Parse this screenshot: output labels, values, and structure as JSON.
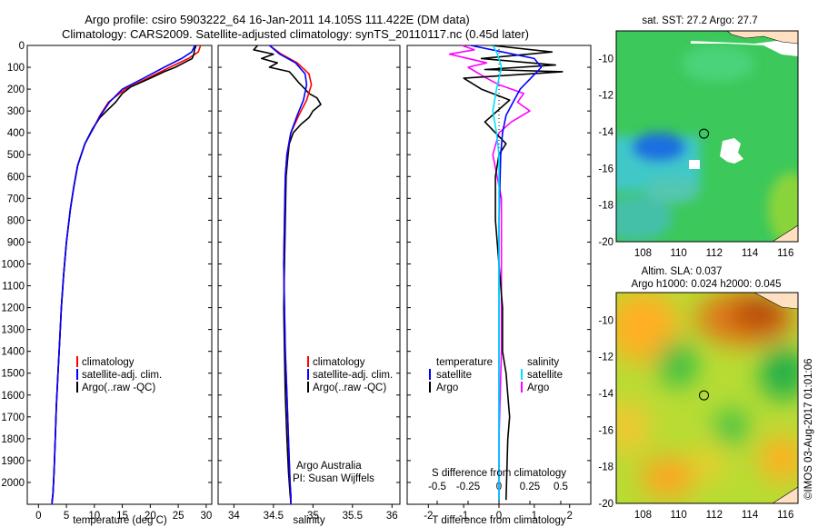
{
  "title": {
    "line1": "Argo profile: csiro 5903222_64 16-Jan-2011 14.105S 111.422E (DM data)",
    "line2": "Climatology: CARS2009. Satellite-adjusted climatology: synTS_20110117.nc (0.45d later)"
  },
  "colors": {
    "climatology": "#ff0000",
    "satellite": "#0000ff",
    "argo": "#000000",
    "argo_salinity": "#ff00ff",
    "satellite_salinity": "#00e0ff"
  },
  "chart_data": [
    {
      "type": "line",
      "id": "temperature",
      "xlabel": "temperature (deg C)",
      "xlim": [
        -2,
        31
      ],
      "ylim": [
        0,
        2100
      ],
      "xticks": [
        0,
        5,
        10,
        15,
        20,
        25,
        30
      ],
      "yticks": [
        0,
        100,
        200,
        300,
        400,
        500,
        600,
        700,
        800,
        900,
        1000,
        1100,
        1200,
        1300,
        1400,
        1500,
        1600,
        1700,
        1800,
        1900,
        2000
      ],
      "legend": [
        "climatology",
        "satellite-adj. clim.",
        "Argo(..raw -QC)"
      ],
      "series": [
        {
          "name": "climatology",
          "x": [
            29,
            28.6,
            26.8,
            23.5,
            19.5,
            15.5,
            12.5,
            11,
            9.8,
            8.3,
            7,
            6.3,
            5.7,
            5,
            4.5,
            4.1,
            3.8,
            3.5,
            3.2,
            3,
            2.8,
            2.6,
            2.4
          ],
          "y": [
            0,
            30,
            60,
            100,
            150,
            200,
            260,
            320,
            380,
            450,
            550,
            650,
            750,
            900,
            1050,
            1200,
            1350,
            1500,
            1650,
            1800,
            1950,
            2050,
            2100
          ]
        },
        {
          "name": "satellite-adj. clim.",
          "x": [
            28,
            27.4,
            25.6,
            22.5,
            18.8,
            15,
            12.7,
            11.1,
            9.8,
            8.3,
            7,
            6.3,
            5.7,
            5,
            4.5,
            4.1,
            3.8,
            3.5,
            3.2,
            3,
            2.8,
            2.6,
            2.4
          ],
          "y": [
            0,
            30,
            60,
            100,
            150,
            200,
            260,
            320,
            380,
            450,
            550,
            650,
            750,
            900,
            1050,
            1200,
            1350,
            1500,
            1650,
            1800,
            1950,
            2050,
            2100
          ]
        },
        {
          "name": "Argo(..raw -QC)",
          "x": [
            28.2,
            27.9,
            27.8,
            27.5,
            26,
            24.5,
            22.5,
            20,
            16.5,
            15,
            13.8,
            12.2,
            11,
            9.7,
            8.3,
            7,
            6.3,
            5.7,
            5,
            4.5,
            4.1,
            3.8,
            3.5,
            3.2,
            3,
            2.8,
            2.6,
            2.4
          ],
          "y": [
            0,
            20,
            40,
            60,
            80,
            100,
            120,
            150,
            190,
            220,
            260,
            300,
            330,
            380,
            450,
            550,
            650,
            750,
            900,
            1050,
            1200,
            1350,
            1500,
            1650,
            1800,
            1950,
            2050,
            2090
          ]
        }
      ]
    },
    {
      "type": "line",
      "id": "salinity",
      "xlabel": "salinity",
      "xlim": [
        33.8,
        36.1
      ],
      "ylim": [
        0,
        2100
      ],
      "xticks": [
        34,
        34.5,
        35,
        35.5,
        36
      ],
      "legend": [
        "climatology",
        "satellite-adj. clim.",
        "Argo(..raw -QC)"
      ],
      "annotation": [
        "Argo Australia",
        "PI: Susan Wijffels"
      ],
      "series": [
        {
          "name": "climatology",
          "x": [
            34.45,
            34.6,
            34.8,
            34.95,
            34.98,
            34.92,
            34.82,
            34.72,
            34.67,
            34.65,
            34.64,
            34.63,
            34.64,
            34.65,
            34.67,
            34.69,
            34.71,
            34.72,
            34.72
          ],
          "y": [
            0,
            40,
            80,
            130,
            180,
            250,
            320,
            400,
            500,
            600,
            800,
            1000,
            1200,
            1400,
            1600,
            1800,
            2000,
            2060,
            2100
          ]
        },
        {
          "name": "satellite-adj. clim.",
          "x": [
            34.45,
            34.58,
            34.78,
            34.9,
            34.92,
            34.88,
            34.8,
            34.72,
            34.67,
            34.65,
            34.64,
            34.63,
            34.64,
            34.65,
            34.67,
            34.69,
            34.71,
            34.72,
            34.72
          ],
          "y": [
            0,
            40,
            80,
            130,
            180,
            250,
            320,
            400,
            500,
            600,
            800,
            1000,
            1200,
            1400,
            1600,
            1800,
            2000,
            2060,
            2100
          ]
        },
        {
          "name": "Argo(..raw -QC)",
          "x": [
            34.3,
            34.25,
            34.5,
            34.35,
            34.55,
            34.45,
            34.7,
            34.75,
            34.82,
            34.9,
            34.95,
            35.05,
            35.1,
            35.0,
            34.95,
            34.85,
            34.75,
            34.7,
            34.68,
            34.66,
            34.65,
            34.64,
            34.63,
            34.64,
            34.65,
            34.67,
            34.69,
            34.71,
            34.72
          ],
          "y": [
            0,
            20,
            40,
            60,
            80,
            100,
            120,
            140,
            170,
            200,
            220,
            240,
            270,
            300,
            330,
            360,
            400,
            450,
            520,
            600,
            800,
            1000,
            1200,
            1400,
            1600,
            1800,
            1950,
            2050,
            2090
          ]
        }
      ]
    },
    {
      "type": "line",
      "id": "difference",
      "xlabel": "T difference from climatology",
      "xlabel2": "S difference from climatology",
      "xlim": [
        -2.6,
        2.6
      ],
      "ylim": [
        0,
        2100
      ],
      "xticks": [
        -2,
        -1,
        0,
        1,
        2
      ],
      "xticks2": [
        -0.5,
        -0.25,
        0,
        0.25,
        0.5
      ],
      "xticklabels2": [
        "-0.5",
        "-0.25",
        "0",
        "0.25",
        "0.5"
      ],
      "legend_temperature": [
        "temperature",
        "satellite",
        "Argo"
      ],
      "legend_salinity": [
        "salinity",
        "satellite",
        "Argo"
      ],
      "series": [
        {
          "name": "T satellite",
          "x": [
            -0.8,
            0.1,
            1.0,
            1.2,
            0.9,
            0.6,
            0.4,
            0.2,
            0.1,
            0.05,
            0,
            0,
            0,
            0
          ],
          "y": [
            0,
            30,
            60,
            100,
            150,
            200,
            260,
            320,
            400,
            500,
            800,
            1200,
            1600,
            2080
          ]
        },
        {
          "name": "T Argo",
          "x": [
            -0.2,
            1.5,
            -0.5,
            1.6,
            -0.4,
            1.8,
            -1.0,
            -0.5,
            0.3,
            -0.4,
            0.2,
            0.0,
            -0.1,
            -0.1,
            0.0,
            0.1,
            0.1,
            0.2,
            0.25,
            0.3,
            0.25,
            0.2
          ],
          "y": [
            0,
            30,
            60,
            90,
            110,
            120,
            150,
            200,
            250,
            350,
            450,
            500,
            600,
            800,
            1000,
            1200,
            1400,
            1500,
            1600,
            1700,
            1800,
            2080
          ]
        },
        {
          "name": "S satellite",
          "x": [
            -0.05,
            -0.02,
            0.0,
            0.02,
            -0.02,
            -0.05,
            -0.02,
            0,
            0,
            0,
            0
          ],
          "y": [
            0,
            30,
            60,
            100,
            200,
            300,
            400,
            500,
            800,
            1400,
            2080
          ]
        },
        {
          "name": "S Argo",
          "x": [
            -0.3,
            -0.2,
            -0.4,
            -0.1,
            -0.25,
            -0.1,
            0.0,
            0.2,
            0.15,
            0.25,
            0.1,
            0.0,
            -0.05,
            0.02,
            0.02,
            0.02,
            0,
            0
          ],
          "y": [
            0,
            20,
            40,
            80,
            100,
            150,
            180,
            220,
            260,
            300,
            350,
            400,
            500,
            700,
            1000,
            1400,
            1800,
            2080
          ]
        }
      ]
    },
    {
      "type": "heatmap",
      "id": "sst_map",
      "title": "sat. SST: 27.2  Argo: 27.7",
      "xlim": [
        106.5,
        116.7
      ],
      "ylim": [
        -20,
        -8.5
      ],
      "xticks": [
        108,
        110,
        112,
        114,
        116
      ],
      "yticks": [
        -10,
        -12,
        -14,
        -16,
        -18,
        -20
      ],
      "marker": {
        "lon": 111.422,
        "lat": -14.105
      }
    },
    {
      "type": "heatmap",
      "id": "sla_map",
      "title": "Altim. SLA: 0.037",
      "title2": "Argo h1000: 0.024  h2000: 0.045",
      "xlim": [
        106.5,
        116.7
      ],
      "ylim": [
        -20,
        -8.5
      ],
      "xticks": [
        108,
        110,
        112,
        114,
        116
      ],
      "yticks": [
        -10,
        -12,
        -14,
        -16,
        -18,
        -20
      ],
      "marker": {
        "lon": 111.422,
        "lat": -14.105
      }
    }
  ],
  "side_label": "©IMOS 03-Aug-2017 01:01:06"
}
